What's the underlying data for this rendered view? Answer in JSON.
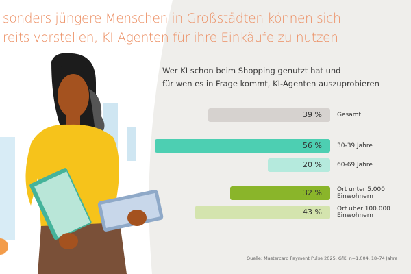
{
  "title": [
    "sonders jüngere Menschen in Großstädten können sich",
    "reits vorstellen, KI-Agenten für ihre Einkäufe zu nutzen"
  ],
  "subtitle": [
    "Wer KI schon beim Shopping genutzt hat und",
    "für wen es in Frage kommt, KI-Agenten auszuprobieren"
  ],
  "source": "Quelle: Mastercard Payment Pulse 2025, GfK, n=1.004, 18–74 Jahre",
  "chart_data": {
    "type": "bar",
    "orientation": "horizontal",
    "categories": [
      "Gesamt",
      "30-39 Jahre",
      "60-69 Jahre",
      "Ort unter 5.000 Einwohnern",
      "Ort über 100.000 Einwohnern"
    ],
    "values": [
      39,
      56,
      20,
      32,
      43
    ],
    "value_labels": [
      "39 %",
      "56 %",
      "20 %",
      "32 %",
      "43 %"
    ],
    "colors": [
      "#d6d2cf",
      "#4dcfb2",
      "#b5eadd",
      "#8ab52a",
      "#d4e4ae"
    ],
    "unit": "%"
  }
}
